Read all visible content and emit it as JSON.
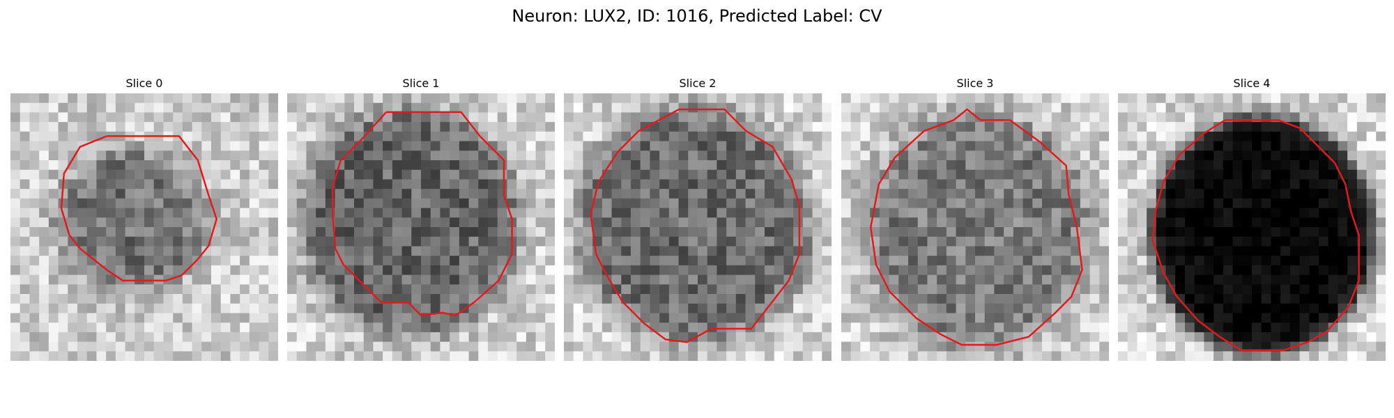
{
  "figure": {
    "title": "Neuron: LUX2, ID: 1016, Predicted Label: CV"
  },
  "panels": [
    {
      "title": "Slice 0"
    },
    {
      "title": "Slice 1"
    },
    {
      "title": "Slice 2"
    },
    {
      "title": "Slice 3"
    },
    {
      "title": "Slice 4"
    }
  ],
  "colors": {
    "contour": "#e31a1c",
    "background": "#ffffff"
  }
}
